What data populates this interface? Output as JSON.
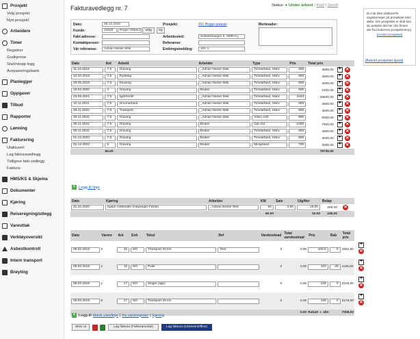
{
  "sidebar": {
    "sections": [
      {
        "label": "Prosjekt",
        "subs": [
          "Velg prosjekt",
          "Nytt prosjekt"
        ]
      },
      {
        "label": "Arbeidere",
        "subs": []
      },
      {
        "label": "Timer",
        "subs": [
          "Registrer",
          "Godkjenne",
          "Start/stopp logg",
          "Avspaseringsbank"
        ]
      },
      {
        "label": "Planlegger",
        "subs": []
      },
      {
        "label": "Oppgaver",
        "subs": []
      },
      {
        "label": "Tilbud",
        "subs": []
      },
      {
        "label": "Rapporter",
        "subs": []
      },
      {
        "label": "Lønning",
        "subs": []
      },
      {
        "label": "Fakturering",
        "subs": [
          "Ufakturert",
          "Lag fakturavedlegg",
          "Tidligere fakt.vedlegg",
          "Faktura"
        ]
      },
      {
        "label": "HMS/KS & Skjema",
        "subs": []
      },
      {
        "label": "Dokumenter",
        "subs": []
      },
      {
        "label": "Kjøring",
        "subs": []
      },
      {
        "label": "Reiseregning/utlegg",
        "subs": []
      },
      {
        "label": "Vareuttak",
        "subs": []
      },
      {
        "label": "Verktøyoversikt",
        "subs": []
      },
      {
        "label": "Asbestkontroll",
        "subs": []
      },
      {
        "label": "Intern transport",
        "subs": []
      },
      {
        "label": "Brøyting",
        "subs": []
      }
    ]
  },
  "title": "Fakturavedlegg nr. 7",
  "status": {
    "label": "Status:",
    "current": "Under arbeid",
    "sep1": "|",
    "ready": "Klart",
    "sep2": "|",
    "sent": "Sendt"
  },
  "form": {
    "dato_label": "Dato:",
    "dato": "06.12.2022",
    "kunde_label": "Kunde:",
    "kunde_nr": "10028",
    "kunde_navn": "Roger Oftebro",
    "velg": "Velg",
    "ny": "Ny",
    "fakt_label": "Fakt.adresse:",
    "kontakt_label": "Kontaktperson:",
    "varref_label": "Vår referanse:",
    "varref": "Adrian Nesse Wiik",
    "prosjekt_label": "Prosjekt:",
    "prosjekt": "101 Bygge garasje",
    "arbsted_label": "Arbeidssted:",
    "arbsted": "Solbærhaugen 5, 6995 Ky",
    "ref_label": "Referanse:",
    "endr_label": "Endringsmelding:",
    "endr": "101-1",
    "merk_label": "Merknader:"
  },
  "timer": {
    "headers": [
      "Dato",
      "Ant",
      "Arbeid",
      "Arbeider",
      "Type",
      "Pris",
      "Total pris"
    ],
    "rows": [
      {
        "dato": "11.10.2018",
        "ant": "7.5",
        "arbeid": "Graving",
        "arbeider": "_Adrian Nesse Wiik",
        "type": "Timearbeid, Hånv",
        "pris": "600",
        "total": "4500,00"
      },
      {
        "dato": "12.10.2018",
        "ant": "7.5",
        "arbeid": "Rydding",
        "arbeider": "_Adrian Nesse Wiik",
        "type": "Timearbeid, Hånv",
        "pris": "600",
        "total": "4500,00"
      },
      {
        "dato": "29.05.2019",
        "ant": "7.5",
        "arbeid": "Knusing",
        "arbeider": "_Adrian Nesse Wiik",
        "type": "Timearbeid, Hånv",
        "pris": "600",
        "total": "4500,00"
      },
      {
        "dato": "18.03.2020",
        "ant": "4",
        "arbeid": "Graving",
        "arbeider": "Bruker",
        "type": "Timearbeid, Hånv",
        "pris": "600",
        "total": "2400,00"
      },
      {
        "dato": "23.09.2021",
        "ant": "7.5",
        "arbeid": "sgsrhsrdh",
        "arbeider": "_Adrian Nesse Wiik",
        "type": "Timearbeid, Hånv",
        "pris": "3444",
        "total": "25830,00"
      },
      {
        "dato": "10.11.2021",
        "ant": "7.5",
        "arbeid": "Grunnarbeid",
        "arbeider": "_Adrian Nesse Wiik",
        "type": "Timearbeid, Hånv",
        "pris": "600",
        "total": "4500,00"
      },
      {
        "dato": "29.11.2022",
        "ant": "7.5",
        "arbeid": "Transport",
        "arbeider": "_Adrian Nesse Wiik",
        "type": "Timearbeid, Hånv",
        "pris": "600",
        "total": "4500,00"
      },
      {
        "dato": "29.11.2022",
        "ant": "7.5",
        "arbeid": "Graving",
        "arbeider": "_Adrian Nesse Wiik",
        "type": "Volvo A40",
        "pris": "800",
        "total": "6000,00"
      },
      {
        "dato": "30.11.2022",
        "ant": "7.5",
        "arbeid": "Graving",
        "arbeider": "Bruker",
        "type": "Cat 311",
        "pris": "1000",
        "total": "7500,00"
      },
      {
        "dato": "30.11.2022",
        "ant": "7.5",
        "arbeid": "Graving",
        "arbeider": "Bruker",
        "type": "Timearbeid, Hånv",
        "pris": "600",
        "total": "4500,00"
      },
      {
        "dato": "01.12.2022",
        "ant": "7.5",
        "arbeid": "Graving",
        "arbeider": "Bruker",
        "type": "Timearbeid, Hånv",
        "pris": "600",
        "total": "4500,00"
      },
      {
        "dato": "01.12.2022",
        "ant": "5",
        "arbeid": "Graving",
        "arbeider": "Bruker",
        "type": "Minigraver",
        "pris": "700",
        "total": "3500,00"
      }
    ],
    "sum_ant": "84.00",
    "sum_total": "76730,00",
    "add": "Legg til linje"
  },
  "kjoring": {
    "headers": [
      "Dato",
      "Kjøring",
      "Arbeider",
      "KM",
      "Sats",
      "Utg/fter",
      "Beløp"
    ],
    "rows": [
      {
        "dato": "21.10.2020",
        "kjoring": "Kjøpe materialer (Høyanger-Førde)",
        "arbeider": "_Adrian Nesse Wiik",
        "km": "60",
        "sats": "3.90",
        "utg": "15.00",
        "belop": "249,00"
      }
    ],
    "sum_km": "60.00",
    "sum_utg": "15.00",
    "sum_belop": "249,00"
  },
  "varer": {
    "headers": [
      "Dato",
      "Varenr",
      "Ant",
      "Enh",
      "Tekst",
      "Ref",
      "Varekostnad",
      "Total varekostnad",
      "Pris",
      "Rab",
      "Total pris"
    ],
    "rows": [
      {
        "dato": "05.02.2019",
        "varenr": "0",
        "ant": "15",
        "enh": "M3",
        "tekst": "Transport 20 km",
        "ref": "Test",
        "vk": "0",
        "tvk": "0,00",
        "pris": "105.5",
        "rab": "0",
        "total": "1582,50"
      },
      {
        "dato": "05.02.2019",
        "varenr": "1",
        "ant": "15",
        "enh": "M3",
        "tekst": "Pukk",
        "ref": "",
        "vk": "0",
        "tvk": "0,00",
        "pris": "100",
        "rab": "25",
        "total": "1125,00"
      },
      {
        "dato": "05.02.2019",
        "varenr": "1",
        "ant": "17",
        "enh": "M3",
        "tekst": "Singel (app)",
        "ref": "",
        "vk": "0",
        "tvk": "0,00",
        "pris": "125",
        "rab": "0",
        "total": "2125,00"
      },
      {
        "dato": "05.02.2019",
        "varenr": "0",
        "ant": "17",
        "enh": "M3",
        "tekst": "Transport 25 km",
        "ref": "",
        "vk": "0",
        "tvk": "0,00",
        "pris": "128",
        "rab": "0",
        "total": "2176,00"
      }
    ],
    "sum_tvk": "0,00",
    "rabatt_label": "Rabatt",
    "rabatt_suffix": "alle:",
    "sum_total": "7008,50",
    "add_prefix": "Legg til",
    "add_blank": "blank varelinje",
    "add_sep1": "|",
    "add_reg": "fra vareregister",
    "add_sep2": "|",
    "add_kjoring": "kjøring"
  },
  "bottom": {
    "print": "Skriv ut",
    "lag_faktura": "Lag faktura (Fakturamodul)",
    "lag_24so": "Lag faktura (24SevenOffice)"
  },
  "right": {
    "text": "Du har ikke ufakturerte registreringer på prosjektet etter dette. Om prosjektet er slutt kan du avslutte det her (Du finnes det fra brukerens prosjektmeny).",
    "link1": "[Avslutt prosjektet]",
    "link2": "[Behold prosjektet åpent]"
  }
}
